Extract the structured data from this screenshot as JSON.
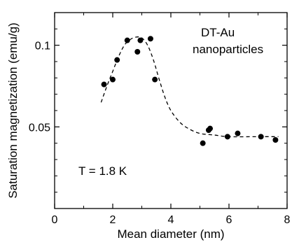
{
  "chart_data": {
    "type": "scatter",
    "title": "",
    "xlabel": "Mean diameter (nm)",
    "ylabel": "Saturation magnetization (emu/g)",
    "xlim": [
      0,
      8
    ],
    "ylim": [
      0,
      0.12
    ],
    "x_ticks": [
      0,
      2,
      4,
      6,
      8
    ],
    "x_tick_labels": [
      "0",
      "2",
      "4",
      "6",
      "8"
    ],
    "y_ticks": [
      0.05,
      0.1
    ],
    "y_tick_labels": [
      "0.05",
      "0.1"
    ],
    "grid": false,
    "series": [
      {
        "type": "scatter",
        "points": [
          {
            "x": 1.7,
            "y": 0.076
          },
          {
            "x": 2.0,
            "y": 0.079
          },
          {
            "x": 2.15,
            "y": 0.091
          },
          {
            "x": 2.5,
            "y": 0.103
          },
          {
            "x": 2.85,
            "y": 0.096
          },
          {
            "x": 2.95,
            "y": 0.103
          },
          {
            "x": 3.3,
            "y": 0.104
          },
          {
            "x": 3.45,
            "y": 0.079
          },
          {
            "x": 5.1,
            "y": 0.04
          },
          {
            "x": 5.3,
            "y": 0.048
          },
          {
            "x": 5.35,
            "y": 0.049
          },
          {
            "x": 5.95,
            "y": 0.044
          },
          {
            "x": 6.3,
            "y": 0.046
          },
          {
            "x": 7.1,
            "y": 0.044
          },
          {
            "x": 7.6,
            "y": 0.042
          }
        ]
      },
      {
        "type": "line",
        "style": "dashed",
        "points": [
          {
            "x": 1.6,
            "y": 0.065
          },
          {
            "x": 1.8,
            "y": 0.075
          },
          {
            "x": 2.0,
            "y": 0.084
          },
          {
            "x": 2.2,
            "y": 0.093
          },
          {
            "x": 2.4,
            "y": 0.1
          },
          {
            "x": 2.6,
            "y": 0.1035
          },
          {
            "x": 2.8,
            "y": 0.105
          },
          {
            "x": 3.0,
            "y": 0.1045
          },
          {
            "x": 3.2,
            "y": 0.1
          },
          {
            "x": 3.4,
            "y": 0.091
          },
          {
            "x": 3.6,
            "y": 0.079
          },
          {
            "x": 3.8,
            "y": 0.068
          },
          {
            "x": 4.0,
            "y": 0.06
          },
          {
            "x": 4.3,
            "y": 0.053
          },
          {
            "x": 4.6,
            "y": 0.049
          },
          {
            "x": 5.0,
            "y": 0.046
          },
          {
            "x": 5.5,
            "y": 0.045
          },
          {
            "x": 6.0,
            "y": 0.044
          },
          {
            "x": 7.0,
            "y": 0.044
          },
          {
            "x": 7.7,
            "y": 0.044
          }
        ]
      }
    ],
    "annotations": [
      "DT-Au",
      "nanoparticles",
      "T = 1.8 K"
    ]
  },
  "colors": {
    "markers": "#000000",
    "fit_line": "#000000",
    "axes": "#000000"
  }
}
